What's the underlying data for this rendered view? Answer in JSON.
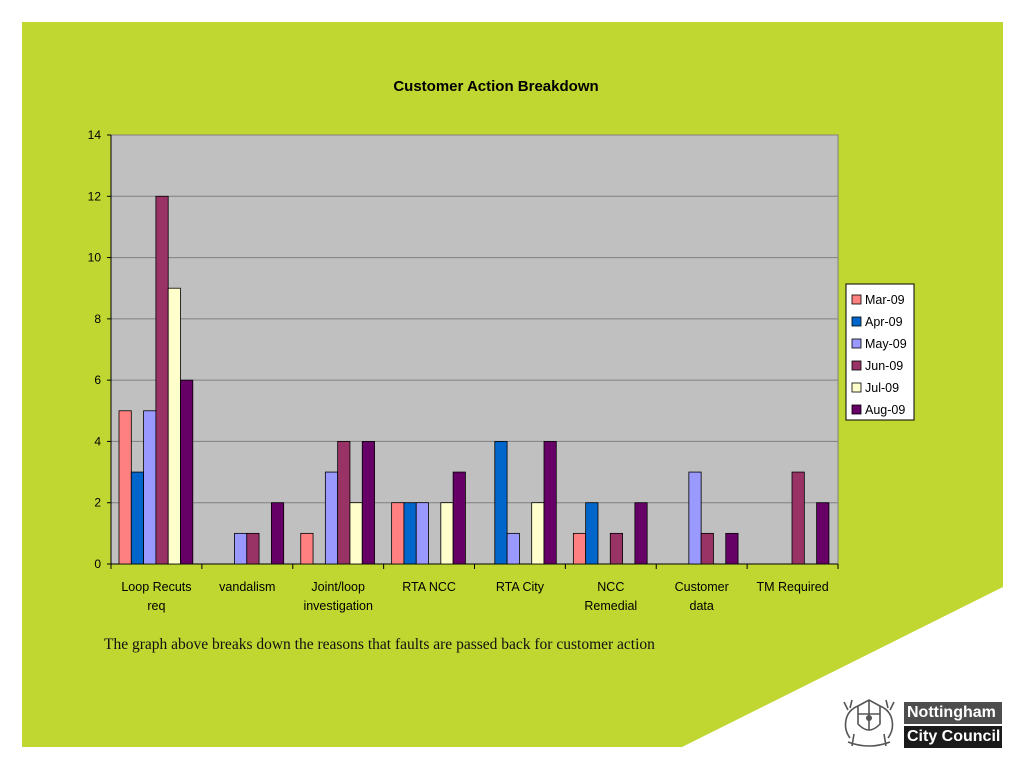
{
  "colors": {
    "slide_green": "#bfd730",
    "plot_background": "#c0c0c0",
    "gridline": "#808080"
  },
  "caption": "The graph above breaks down the reasons that faults are passed back for customer action",
  "logo": {
    "line1": "Nottingham",
    "line2": "City Council",
    "crest_icon": "coat-of-arms-icon"
  },
  "chart_data": {
    "type": "bar",
    "title": "Customer Action Breakdown",
    "xlabel": "",
    "ylabel": "",
    "ylim": [
      0,
      14
    ],
    "yticks": [
      0,
      2,
      4,
      6,
      8,
      10,
      12,
      14
    ],
    "grid": true,
    "legend_position": "right",
    "categories": [
      [
        "Loop Recuts",
        "req"
      ],
      [
        "vandalism"
      ],
      [
        "Joint/loop",
        "investigation"
      ],
      [
        "RTA NCC"
      ],
      [
        "RTA City"
      ],
      [
        "NCC",
        "Remedial"
      ],
      [
        "Customer",
        "data"
      ],
      [
        "TM Required"
      ]
    ],
    "series": [
      {
        "name": "Mar-09",
        "color": "#ff8080",
        "values": [
          5,
          0,
          1,
          2,
          0,
          1,
          0,
          0
        ]
      },
      {
        "name": "Apr-09",
        "color": "#0066cc",
        "values": [
          3,
          0,
          0,
          2,
          4,
          2,
          0,
          0
        ]
      },
      {
        "name": "May-09",
        "color": "#9999ff",
        "values": [
          5,
          1,
          3,
          2,
          1,
          0,
          3,
          0
        ]
      },
      {
        "name": "Jun-09",
        "color": "#993366",
        "values": [
          12,
          1,
          4,
          0,
          0,
          1,
          1,
          3
        ]
      },
      {
        "name": "Jul-09",
        "color": "#ffffcc",
        "values": [
          9,
          0,
          2,
          2,
          2,
          0,
          0,
          0
        ]
      },
      {
        "name": "Aug-09",
        "color": "#660066",
        "values": [
          6,
          2,
          4,
          3,
          4,
          2,
          1,
          2
        ]
      }
    ]
  }
}
